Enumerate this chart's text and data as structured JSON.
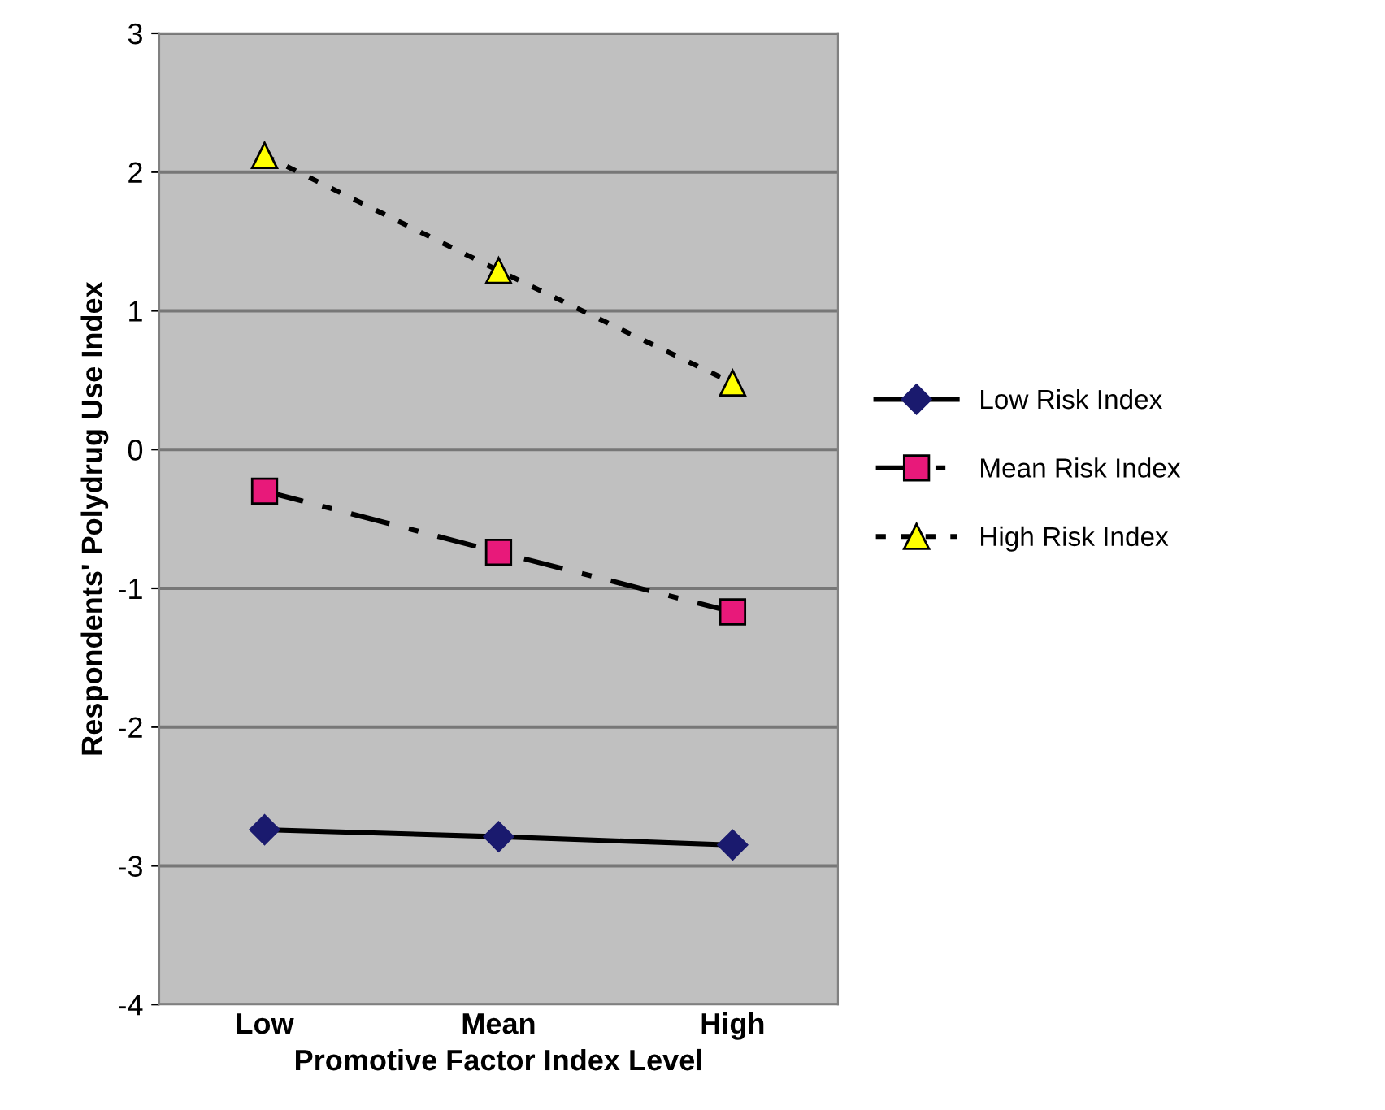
{
  "chart_data": {
    "type": "line",
    "xlabel": "Promotive Factor Index Level",
    "ylabel": "Respondents' Polydrug Use Index",
    "categories": [
      "Low",
      "Mean",
      "High"
    ],
    "series": [
      {
        "name": "Low Risk Index",
        "color": "#1a1a6e",
        "values": [
          -2.74,
          -2.79,
          -2.85
        ],
        "marker": "diamond",
        "line_style": "solid"
      },
      {
        "name": "Mean Risk Index",
        "color": "#e8197a",
        "values": [
          -0.3,
          -0.74,
          -1.17
        ],
        "marker": "square",
        "line_style": "dashed"
      },
      {
        "name": "High Risk Index",
        "color": "#ffff00",
        "values": [
          2.12,
          1.29,
          0.48
        ],
        "marker": "triangle",
        "line_style": "dotted"
      }
    ],
    "ylim": [
      -4,
      3
    ],
    "yticks": [
      -4,
      -3,
      -2,
      -1,
      0,
      1,
      2,
      3
    ],
    "grid": "y",
    "legend": "right"
  }
}
